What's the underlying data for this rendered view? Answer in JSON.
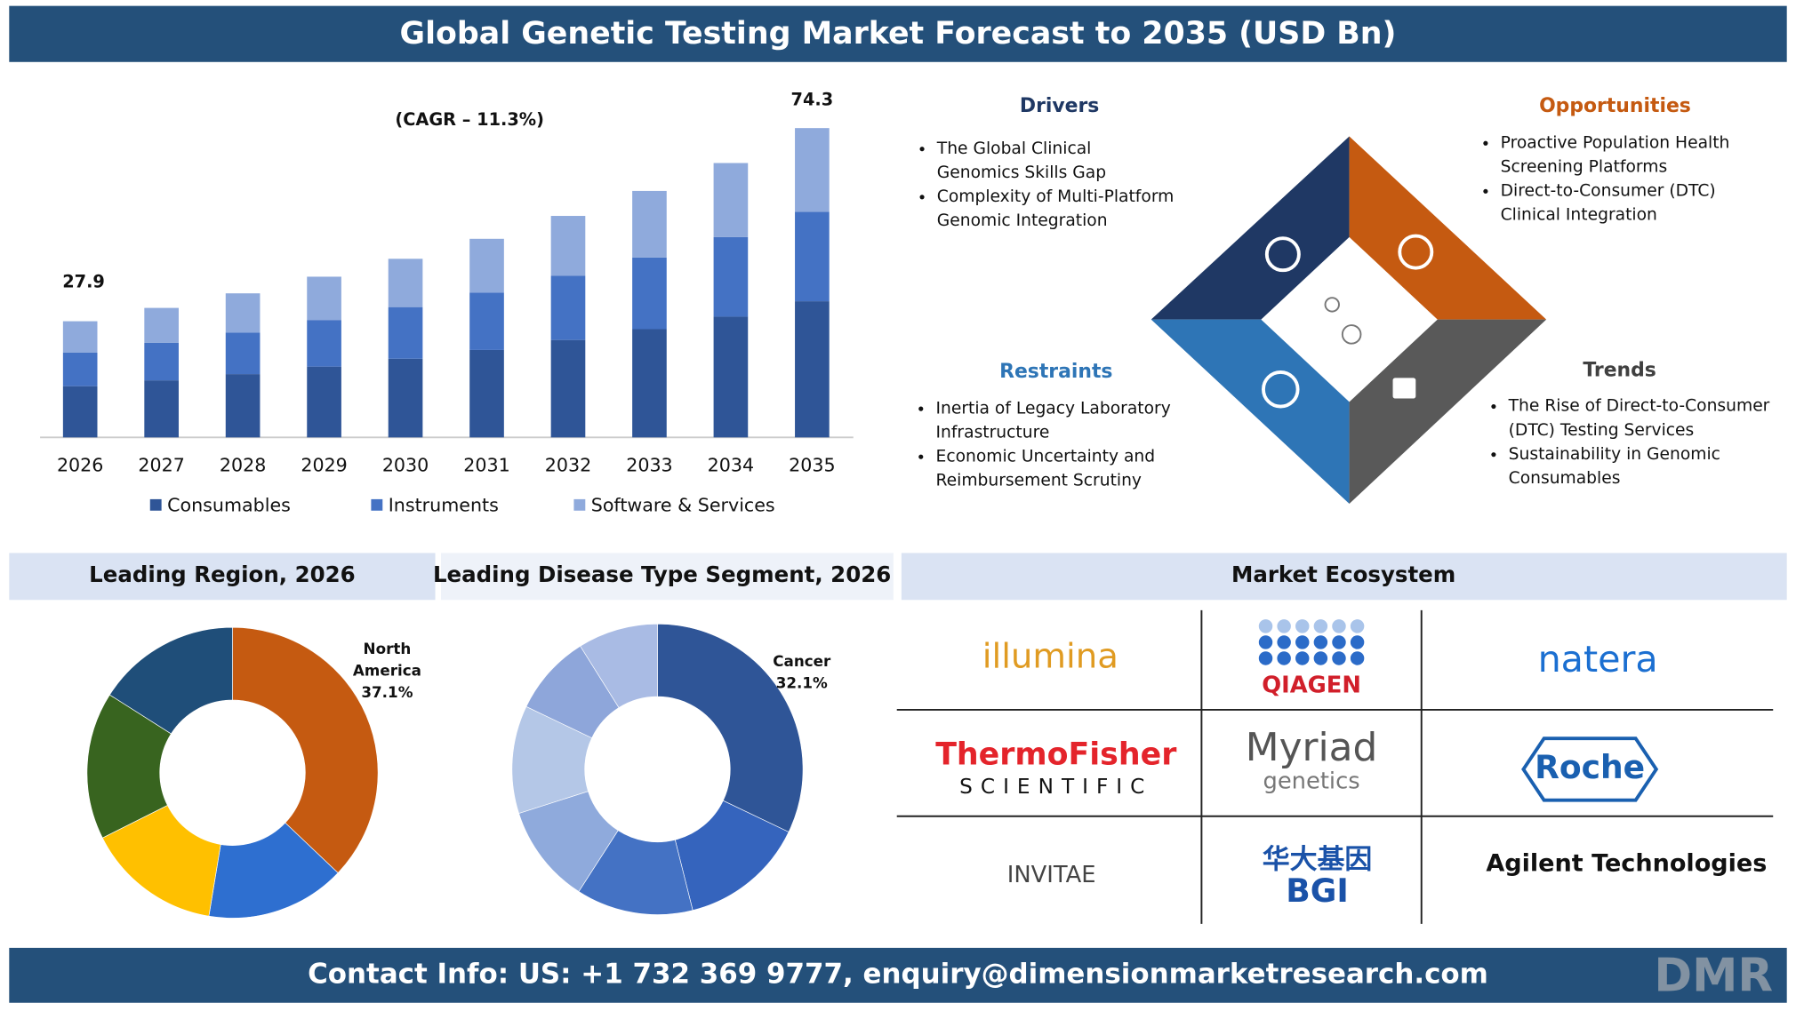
{
  "title": "Global Genetic Testing Market Forecast to 2035 (USD Bn)",
  "chart_data": [
    {
      "type": "bar",
      "stacked": true,
      "subtitle": "(CAGR – 11.3%)",
      "categories": [
        "2026",
        "2027",
        "2028",
        "2029",
        "2030",
        "2031",
        "2032",
        "2033",
        "2034",
        "2035"
      ],
      "series": [
        {
          "name": "Consumables",
          "color": "#2f5597",
          "values": [
            12.3,
            13.7,
            15.2,
            17.0,
            18.9,
            21.0,
            23.4,
            26.0,
            29.0,
            32.7
          ]
        },
        {
          "name": "Instruments",
          "color": "#4472c4",
          "values": [
            8.1,
            9.0,
            10.0,
            11.2,
            12.4,
            13.8,
            15.4,
            17.2,
            19.1,
            21.5
          ]
        },
        {
          "name": "Software & Services",
          "color": "#8faadc",
          "values": [
            7.5,
            8.4,
            9.4,
            10.4,
            11.6,
            12.9,
            14.4,
            16.0,
            17.8,
            20.1
          ]
        }
      ],
      "annotations": [
        {
          "x": "2026",
          "text": "27.9"
        },
        {
          "x": "2035",
          "text": "74.3"
        }
      ],
      "ylim": [
        0,
        80
      ]
    },
    {
      "type": "pie",
      "title": "Leading Region, 2026",
      "hole": 0.5,
      "categories": [
        "North America",
        null,
        null,
        null,
        null
      ],
      "values": [
        37.1,
        15.5,
        15.0,
        16.4,
        16.0
      ],
      "value_labels": [
        "37.1%",
        null,
        null,
        null,
        null
      ],
      "colors": [
        "#c55a11",
        "#2e6fd0",
        "#ffc000",
        "#38641f",
        "#1f4e79"
      ]
    },
    {
      "type": "pie",
      "title": "Leading Disease Type Segment, 2026",
      "hole": 0.5,
      "categories": [
        "Cancer",
        null,
        null,
        null,
        null,
        null,
        null
      ],
      "values": [
        32.1,
        14.0,
        13.0,
        11.0,
        12.0,
        9.0,
        8.9
      ],
      "value_labels": [
        "32.1%",
        null,
        null,
        null,
        null,
        null,
        null
      ],
      "colors": [
        "#2f5597",
        "#3564bd",
        "#4472c4",
        "#8faadc",
        "#b4c7e7",
        "#8ea6da",
        "#a9bbe4"
      ]
    }
  ],
  "drivers": {
    "heading": "Drivers",
    "items": [
      "The Global Clinical Genomics Skills Gap",
      "Complexity of Multi-Platform Genomic Integration"
    ]
  },
  "opportunities": {
    "heading": "Opportunities",
    "items": [
      "Proactive Population Health Screening Platforms",
      "Direct-to-Consumer (DTC) Clinical Integration"
    ]
  },
  "restraints": {
    "heading": "Restraints",
    "items": [
      "Inertia of Legacy Laboratory Infrastructure",
      "Economic Uncertainty and Reimbursement Scrutiny"
    ]
  },
  "trends": {
    "heading": "Trends",
    "items": [
      "The Rise of Direct-to-Consumer (DTC) Testing Services",
      "Sustainability in Genomic Consumables"
    ]
  },
  "ecosystem": {
    "title": "Market Ecosystem",
    "logos": [
      {
        "name": "illumina"
      },
      {
        "name": "QIAGEN"
      },
      {
        "name": "natera"
      },
      {
        "name": "ThermoFisher",
        "sub": "SCIENTIFIC"
      },
      {
        "name": "Myriad",
        "sub": "genetics"
      },
      {
        "name": "Roche"
      },
      {
        "name": "INVITAE"
      },
      {
        "name": "华大基因",
        "sub": "BGI"
      },
      {
        "name": "Agilent Technologies"
      }
    ]
  },
  "contact": "Contact Info: US: +1 732 369 9777, enquiry@dimensionmarketresearch.com",
  "brand": "DMR"
}
